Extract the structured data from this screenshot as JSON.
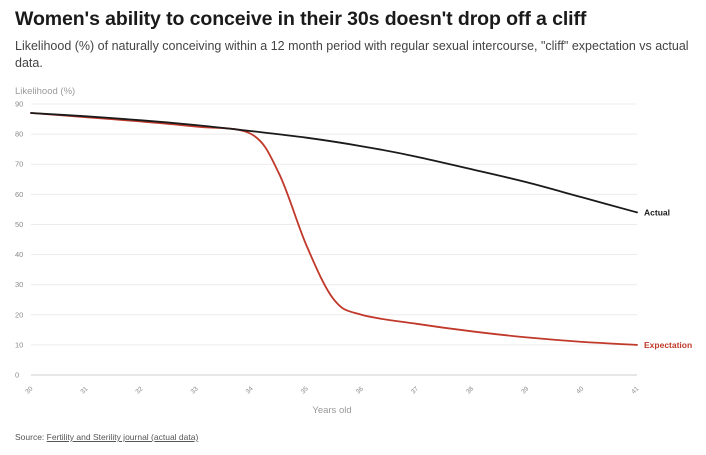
{
  "header": {
    "title": "Women's ability to conceive in their 30s doesn't drop off a cliff",
    "subtitle": "Likelihood (%) of naturally conceiving within a 12 month period with regular sexual intercourse, \"cliff\" expectation vs actual data."
  },
  "source": {
    "prefix": "Source: ",
    "link_text": "Fertility and Sterility journal (actual data)"
  },
  "chart_data": {
    "type": "line",
    "ylabel": "Likelihood (%)",
    "xlabel": "Years old",
    "ylim": [
      0,
      90
    ],
    "xlim": [
      30,
      41
    ],
    "yticks": [
      0,
      10,
      20,
      30,
      40,
      50,
      60,
      70,
      80,
      90
    ],
    "xticks": [
      30,
      31,
      32,
      33,
      34,
      35,
      36,
      37,
      38,
      39,
      40,
      41
    ],
    "grid": true,
    "series": [
      {
        "name": "Actual",
        "color": "#1a1a1a",
        "x": [
          30,
          31,
          32,
          33,
          34,
          35,
          36,
          37,
          38,
          39,
          40,
          41
        ],
        "y": [
          87,
          85.9,
          84.6,
          83,
          81,
          78.8,
          76,
          72.5,
          68.3,
          64,
          59,
          54
        ]
      },
      {
        "name": "Expectation",
        "color": "#c0392b",
        "x": [
          30,
          31,
          32,
          33,
          34,
          34.5,
          35,
          35.5,
          36,
          37,
          38,
          39,
          40,
          41
        ],
        "y": [
          87,
          85.6,
          84.2,
          82.5,
          80,
          67,
          43,
          25,
          20,
          17,
          14.5,
          12.5,
          11,
          10
        ]
      }
    ]
  }
}
